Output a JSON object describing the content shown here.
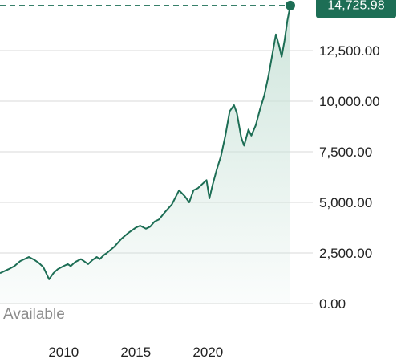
{
  "chart_data": {
    "type": "area",
    "colors": {
      "line": "#1d6e55",
      "badge": "#1d6e55",
      "grid": "#d9d9d9",
      "fill_top": "#c9e2d8"
    },
    "y_ticks": [
      "0.00",
      "2,500.00",
      "5,000.00",
      "7,500.00",
      "10,000.00",
      "12,500.00"
    ],
    "y_tick_values": [
      0,
      2500,
      5000,
      7500,
      10000,
      12500
    ],
    "x_ticks": [
      "2010",
      "2015",
      "2020"
    ],
    "x_tick_values": [
      2010,
      2015,
      2020
    ],
    "ylim": [
      0,
      15000
    ],
    "xlim": [
      2005.6,
      2025.7
    ],
    "grid": true,
    "last_value_label": "14,725.98",
    "last_value": 14725.98,
    "annotation": "Available",
    "x": [
      2005.6,
      2006.2,
      2006.6,
      2007.0,
      2007.3,
      2007.6,
      2008.0,
      2008.3,
      2008.6,
      2008.8,
      2009.0,
      2009.3,
      2009.6,
      2010.0,
      2010.3,
      2010.5,
      2010.8,
      2011.2,
      2011.5,
      2011.7,
      2012.0,
      2012.3,
      2012.5,
      2012.8,
      2013.0,
      2013.5,
      2014.0,
      2014.5,
      2015.0,
      2015.3,
      2015.7,
      2016.0,
      2016.3,
      2016.6,
      2017.0,
      2017.5,
      2018.0,
      2018.4,
      2018.7,
      2019.0,
      2019.3,
      2019.6,
      2019.9,
      2020.1,
      2020.3,
      2020.6,
      2020.9,
      2021.2,
      2021.5,
      2021.8,
      2022.0,
      2022.3,
      2022.5,
      2022.8,
      2023.0,
      2023.3,
      2023.6,
      2023.9,
      2024.2,
      2024.5,
      2024.7,
      2024.9,
      2025.1,
      2025.3,
      2025.5,
      2025.7
    ],
    "y": [
      1500,
      1700,
      1850,
      2100,
      2200,
      2300,
      2150,
      2000,
      1800,
      1500,
      1200,
      1500,
      1700,
      1850,
      1950,
      1850,
      2050,
      2200,
      2050,
      1950,
      2150,
      2300,
      2200,
      2400,
      2500,
      2800,
      3200,
      3500,
      3750,
      3850,
      3700,
      3800,
      4050,
      4150,
      4500,
      4900,
      5600,
      5300,
      5000,
      5600,
      5700,
      5900,
      6100,
      5200,
      5800,
      6600,
      7300,
      8300,
      9500,
      9800,
      9400,
      8200,
      7800,
      8600,
      8300,
      8800,
      9600,
      10300,
      11300,
      12500,
      13300,
      12800,
      12200,
      13000,
      14000,
      14725.98
    ]
  }
}
